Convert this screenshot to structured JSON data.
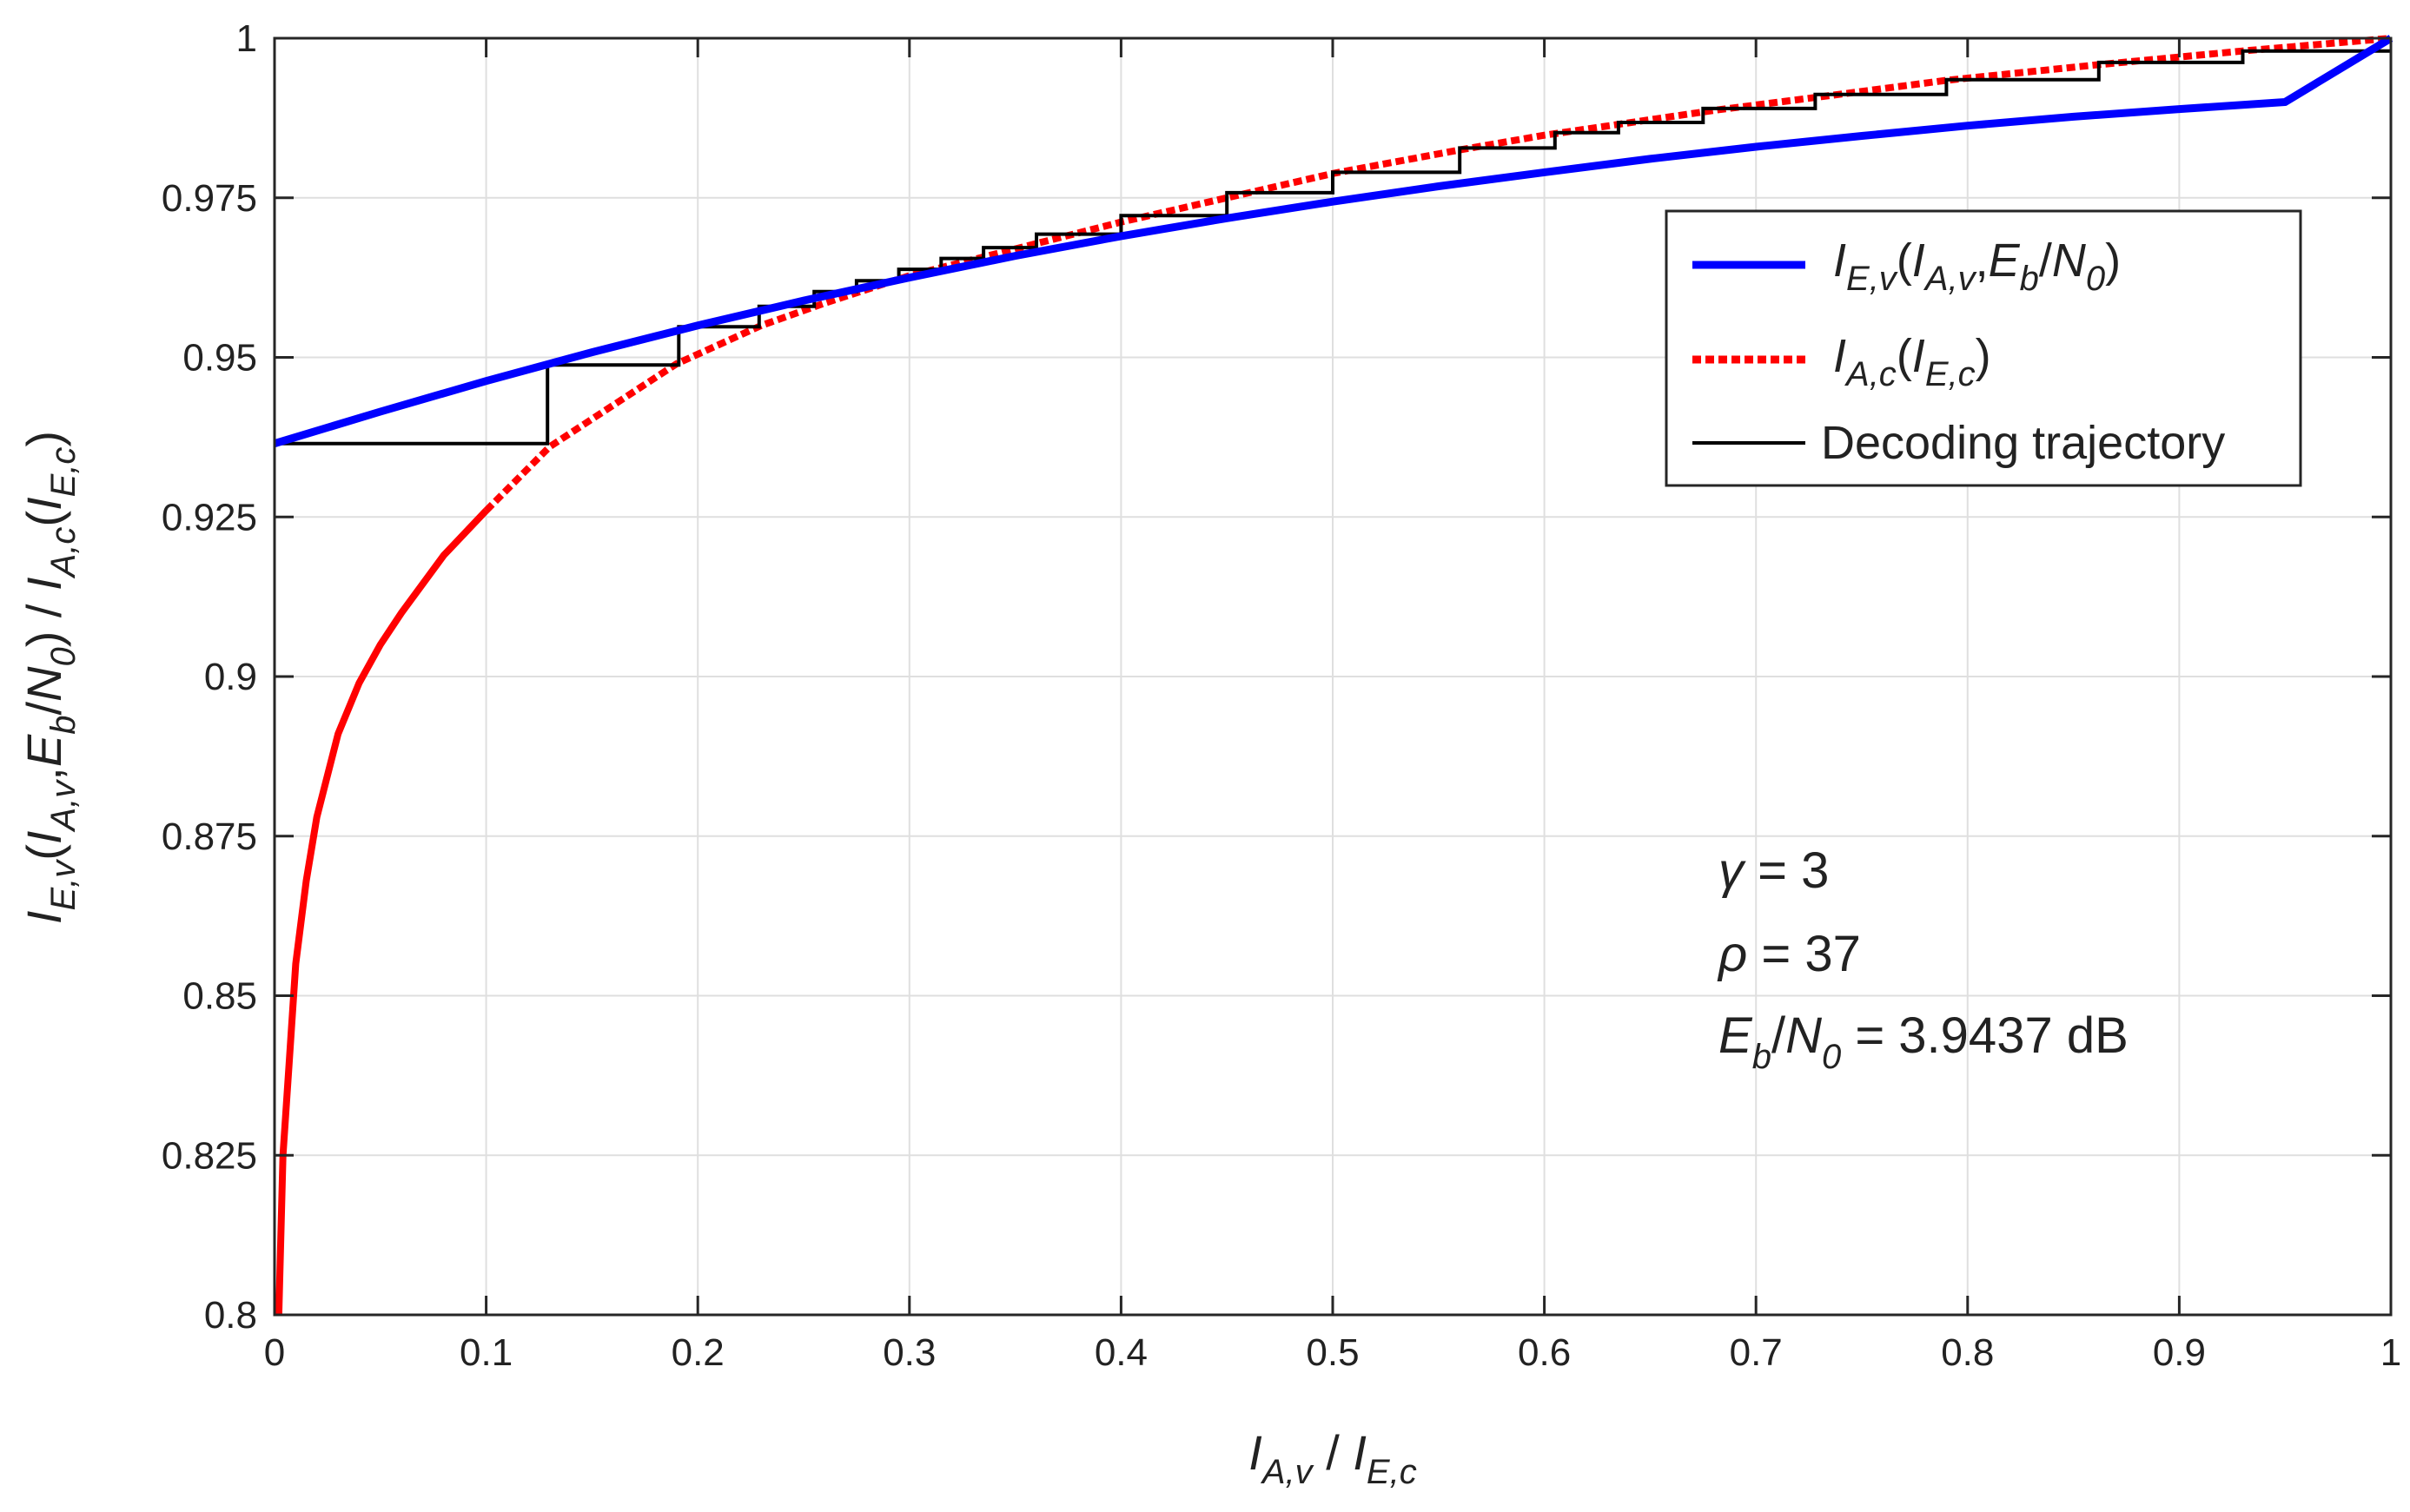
{
  "chart_data": {
    "type": "line",
    "title": "",
    "xlabel": {
      "main": "I",
      "sub": "A,v",
      "sep": " / ",
      "main2": "I",
      "sub2": "E,c"
    },
    "ylabel": {
      "main": "I",
      "sub": "E,v",
      "p1": "(",
      "main2": "I",
      "sub2": "A,v",
      "comma": ",",
      "main3": "E",
      "sub3": "b",
      "slash": "/",
      "main4": "N",
      "sub4": "0",
      "p2": ")",
      "sep": " / ",
      "main5": "I",
      "sub5": "A,c",
      "p3": "(",
      "main6": "I",
      "sub6": "E,c",
      "p4": ")"
    },
    "xlim": [
      0,
      1
    ],
    "ylim": [
      0.8,
      1
    ],
    "grid": true,
    "xticks": [
      "0",
      "0.1",
      "0.2",
      "0.3",
      "0.4",
      "0.5",
      "0.6",
      "0.7",
      "0.8",
      "0.9",
      "1"
    ],
    "yticks": [
      "0.8",
      "0.825",
      "0.85",
      "0.875",
      "0.9",
      "0.925",
      "0.95",
      "0.975",
      "1"
    ],
    "series": [
      {
        "name": "I_E,v(I_A,v, E_b/N_0)",
        "color": "#0000ff",
        "style": "solid",
        "x": [
          0,
          0.05,
          0.1,
          0.15,
          0.2,
          0.25,
          0.3,
          0.35,
          0.4,
          0.45,
          0.5,
          0.55,
          0.6,
          0.65,
          0.7,
          0.75,
          0.8,
          0.85,
          0.9,
          0.95,
          1
        ],
        "y": [
          0.9365,
          0.9415,
          0.9463,
          0.9508,
          0.955,
          0.9589,
          0.9625,
          0.9659,
          0.969,
          0.9718,
          0.9744,
          0.9768,
          0.979,
          0.9811,
          0.983,
          0.9847,
          0.9863,
          0.9877,
          0.9889,
          0.99,
          1.0
        ]
      },
      {
        "name": "I_A,c(I_E,c)",
        "color": "#ff0000",
        "style": "solid-then-dotted",
        "x": [
          0.002,
          0.004,
          0.007,
          0.01,
          0.015,
          0.02,
          0.03,
          0.04,
          0.05,
          0.06,
          0.08,
          0.1,
          0.13,
          0.16,
          0.19,
          0.23,
          0.26,
          0.3,
          0.35,
          0.4,
          0.5,
          0.56,
          0.6,
          0.68,
          0.73,
          0.79,
          0.86,
          0.93,
          1
        ],
        "y": [
          0.8,
          0.825,
          0.84,
          0.855,
          0.868,
          0.878,
          0.891,
          0.899,
          0.905,
          0.91,
          0.919,
          0.926,
          0.936,
          0.9425,
          0.949,
          0.955,
          0.9585,
          0.9628,
          0.967,
          0.9712,
          0.9788,
          0.9825,
          0.9848,
          0.9887,
          0.9908,
          0.9934,
          0.9958,
          0.998,
          1.0
        ]
      },
      {
        "name": "Decoding trajectory",
        "color": "#000000",
        "style": "staircase",
        "x": [
          0,
          0.129,
          0.129,
          0.191,
          0.191,
          0.229,
          0.229,
          0.255,
          0.255,
          0.275,
          0.275,
          0.295,
          0.295,
          0.315,
          0.315,
          0.335,
          0.335,
          0.36,
          0.36,
          0.4,
          0.4,
          0.45,
          0.45,
          0.5,
          0.5,
          0.56,
          0.56,
          0.605,
          0.605,
          0.635,
          0.635,
          0.675,
          0.675,
          0.728,
          0.728,
          0.79,
          0.79,
          0.862,
          0.862,
          0.93,
          0.93,
          1.0
        ],
        "y": [
          0.9365,
          0.9365,
          0.9488,
          0.9488,
          0.9548,
          0.9548,
          0.958,
          0.958,
          0.9603,
          0.9603,
          0.962,
          0.962,
          0.9638,
          0.9638,
          0.9655,
          0.9655,
          0.9672,
          0.9672,
          0.9693,
          0.9693,
          0.9722,
          0.9722,
          0.9758,
          0.9758,
          0.979,
          0.979,
          0.9828,
          0.9828,
          0.9852,
          0.9852,
          0.9868,
          0.9868,
          0.989,
          0.989,
          0.9912,
          0.9912,
          0.9935,
          0.9935,
          0.9962,
          0.9962,
          0.998,
          0.998
        ]
      }
    ],
    "legend": {
      "placement": "top-right",
      "entries": [
        {
          "main": "I",
          "sub": "E,v",
          "p1": "(",
          "main2": "I",
          "sub2": "A,v",
          "comma": ",",
          "main3": "E",
          "sub3": "b",
          "slash": "/",
          "main4": "N",
          "sub4": "0",
          "p2": ")"
        },
        {
          "main": "I",
          "sub": "A,c",
          "p1": "(",
          "main2": "I",
          "sub2": "E,c",
          "p2": ")"
        },
        {
          "text": "Decoding trajectory"
        }
      ]
    },
    "annotations": [
      {
        "sym": "γ",
        "text": " = 3"
      },
      {
        "sym": "ρ",
        "text": " = 37"
      },
      {
        "sym": "E",
        "sub": "b",
        "slash": "/",
        "sym2": "N",
        "sub2": "0",
        "text": " = 3.9437 dB"
      }
    ]
  }
}
